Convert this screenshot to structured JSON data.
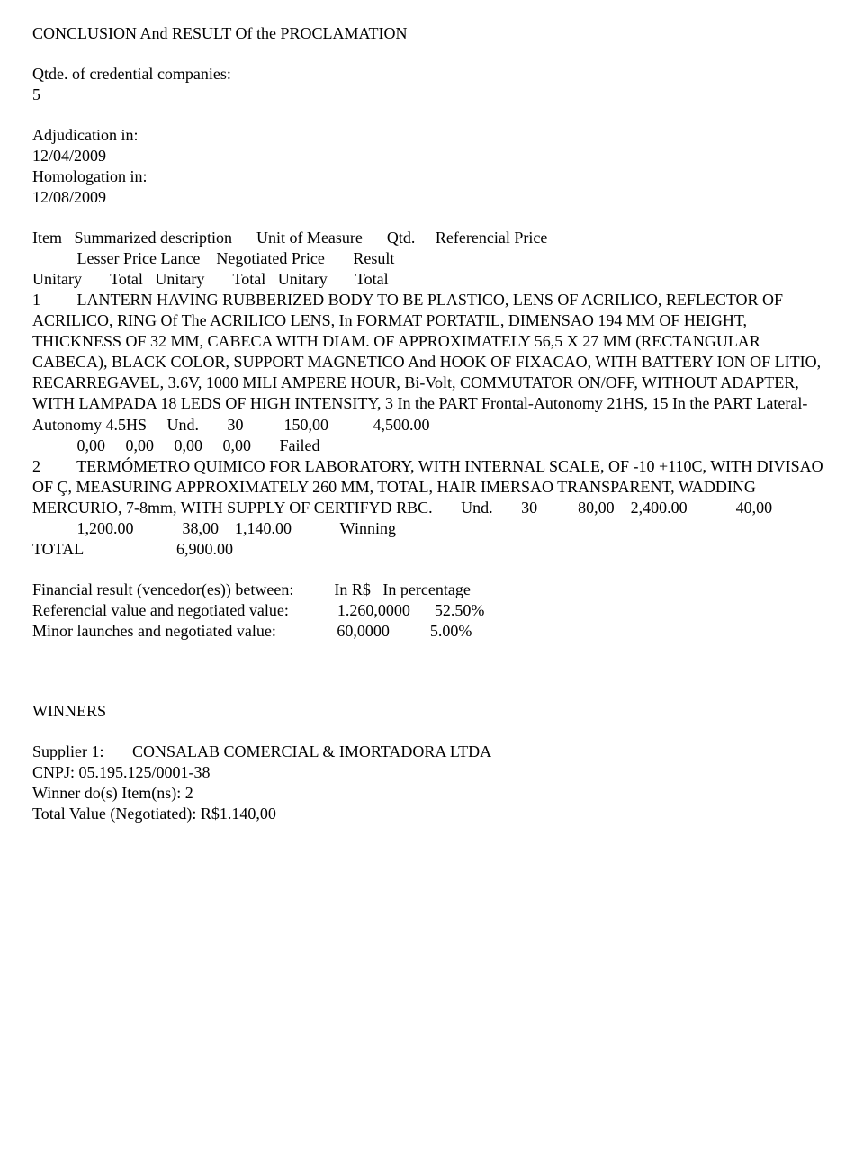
{
  "doc": {
    "title": "CONCLUSION And RESULT Of the PROCLAMATION",
    "qtde_label": "Qtde. of credential companies:",
    "qtde_value": "5",
    "adjudication_label": "Adjudication in:",
    "adjudication_date": "12/04/2009",
    "homologation_label": "Homologation in:",
    "homologation_date": "12/08/2009",
    "header_line1": "Item   Summarized description      Unit of Measure      Qtd.     Referencial Price",
    "header_line2": "           Lesser Price Lance    Negotiated Price       Result",
    "header_line3": "Unitary       Total   Unitary       Total   Unitary       Total",
    "item1": "1         LANTERN HAVING RUBBERIZED BODY TO BE PLASTICO, LENS OF ACRILICO, REFLECTOR OF ACRILICO, RING Of The ACRILICO LENS, In FORMAT PORTATIL, DIMENSAO 194 MM OF HEIGHT, THICKNESS OF 32 MM, CABECA WITH DIAM. OF APPROXIMATELY 56,5 X 27 MM (RECTANGULAR CABECA), BLACK COLOR, SUPPORT MAGNETICO And HOOK OF FIXACAO, WITH BATTERY ION OF LITIO, RECARREGAVEL, 3.6V, 1000 MILI AMPERE HOUR, Bi-Volt, COMMUTATOR ON/OFF, WITHOUT ADAPTER, WITH LAMPADA 18 LEDS OF HIGH INTENSITY, 3 In the PART Frontal-Autonomy 21HS, 15 In the PART Lateral-Autonomy 4.5HS     Und.       30          150,00           4,500.00",
    "item1_tail": "           0,00     0,00     0,00     0,00       Failed",
    "item2": "2         TERMÓMETRO QUIMICO FOR LABORATORY, WITH INTERNAL SCALE, OF -10 +110C, WITH DIVISAO OF Ç, MEASURING APPROXIMATELY 260 MM, TOTAL, HAIR IMERSAO TRANSPARENT, WADDING MERCURIO, 7-8mm, WITH SUPPLY OF CERTIFYD RBC.       Und.       30          80,00    2,400.00            40,00",
    "item2_tail": "           1,200.00            38,00    1,140.00            Winning",
    "total_line": "TOTAL                       6,900.00",
    "fin_header": "Financial result (vencedor(es)) between:          In R$   In percentage",
    "fin_line1": "Referencial value and negotiated value:            1.260,0000      52.50%",
    "fin_line2": "Minor launches and negotiated value:               60,0000          5.00%",
    "winners_label": "WINNERS",
    "supplier_line": "Supplier 1:       CONSALAB COMERCIAL & IMORTADORA LTDA",
    "cnpj_line": "CNPJ: 05.195.125/0001-38",
    "winner_item_line": "Winner do(s) Item(ns): 2",
    "total_value_line": "Total Value (Negotiated): R$1.140,00"
  }
}
